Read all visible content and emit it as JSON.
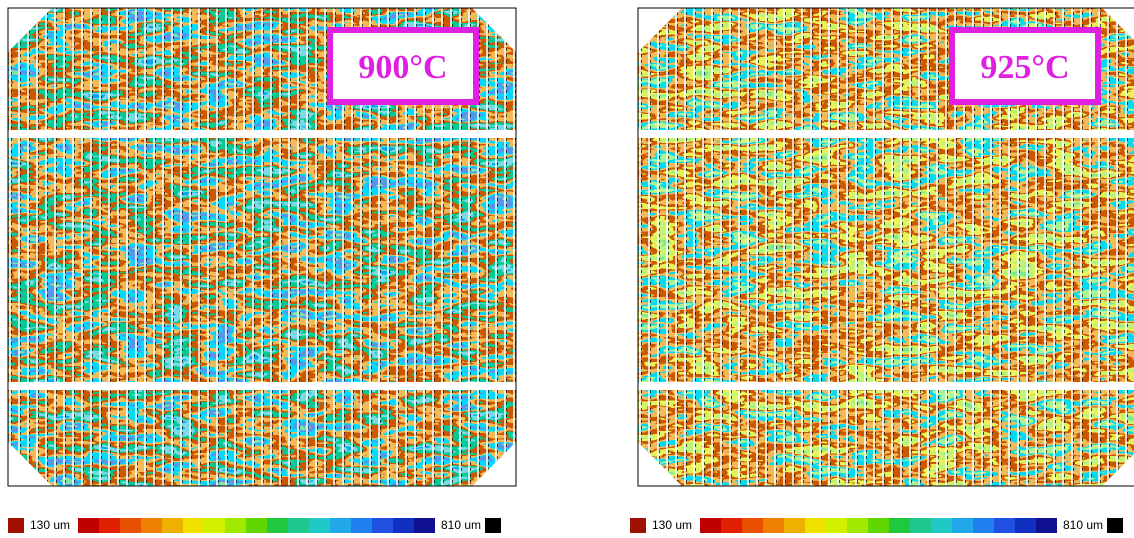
{
  "panels": [
    {
      "label": "900°C",
      "scale": {
        "min_label": "130 um",
        "max_label": "810 um"
      }
    },
    {
      "label": "925°C",
      "scale": {
        "min_label": "130 um",
        "max_label": "810 um"
      }
    }
  ]
}
